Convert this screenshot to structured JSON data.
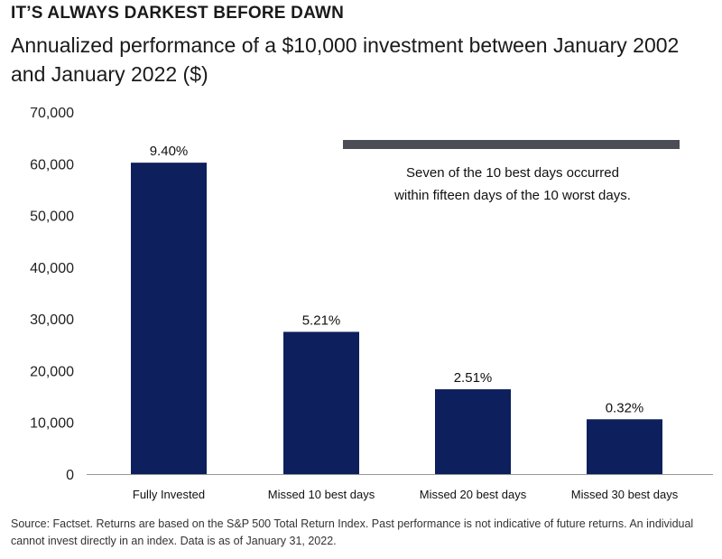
{
  "header": {
    "kicker": "IT’S ALWAYS DARKEST BEFORE DAWN",
    "title": "Annualized performance of a $10,000 investment between January 2002 and January 2022 ($)"
  },
  "chart_data": {
    "type": "bar",
    "title": "Annualized performance of a $10,000 investment between January 2002 and January 2022 ($)",
    "xlabel": "",
    "ylabel": "",
    "ylim": [
      0,
      70000
    ],
    "yticks": [
      0,
      10000,
      20000,
      30000,
      40000,
      50000,
      60000,
      70000
    ],
    "ytick_labels": [
      "0",
      "10,000",
      "20,000",
      "30,000",
      "40,000",
      "50,000",
      "60,000",
      "70,000"
    ],
    "categories": [
      "Fully Invested",
      "Missed 10 best days",
      "Missed 20 best days",
      "Missed 30 best days"
    ],
    "values": [
      60200,
      27500,
      16400,
      10600
    ],
    "data_labels": [
      "9.40%",
      "5.21%",
      "2.51%",
      "0.32%"
    ],
    "bar_color": "#0d1f5c",
    "grid": false,
    "annotation": {
      "lines": [
        "Seven of the 10 best days occurred",
        "within fifteen days of the 10 worst days."
      ],
      "bar_color": "#4a4d55"
    }
  },
  "footer": {
    "source": "Source: Factset. Returns are based on the S&P 500 Total Return Index. Past performance is not indicative of future returns. An individual cannot invest directly in an index. Data is as of January 31, 2022."
  }
}
